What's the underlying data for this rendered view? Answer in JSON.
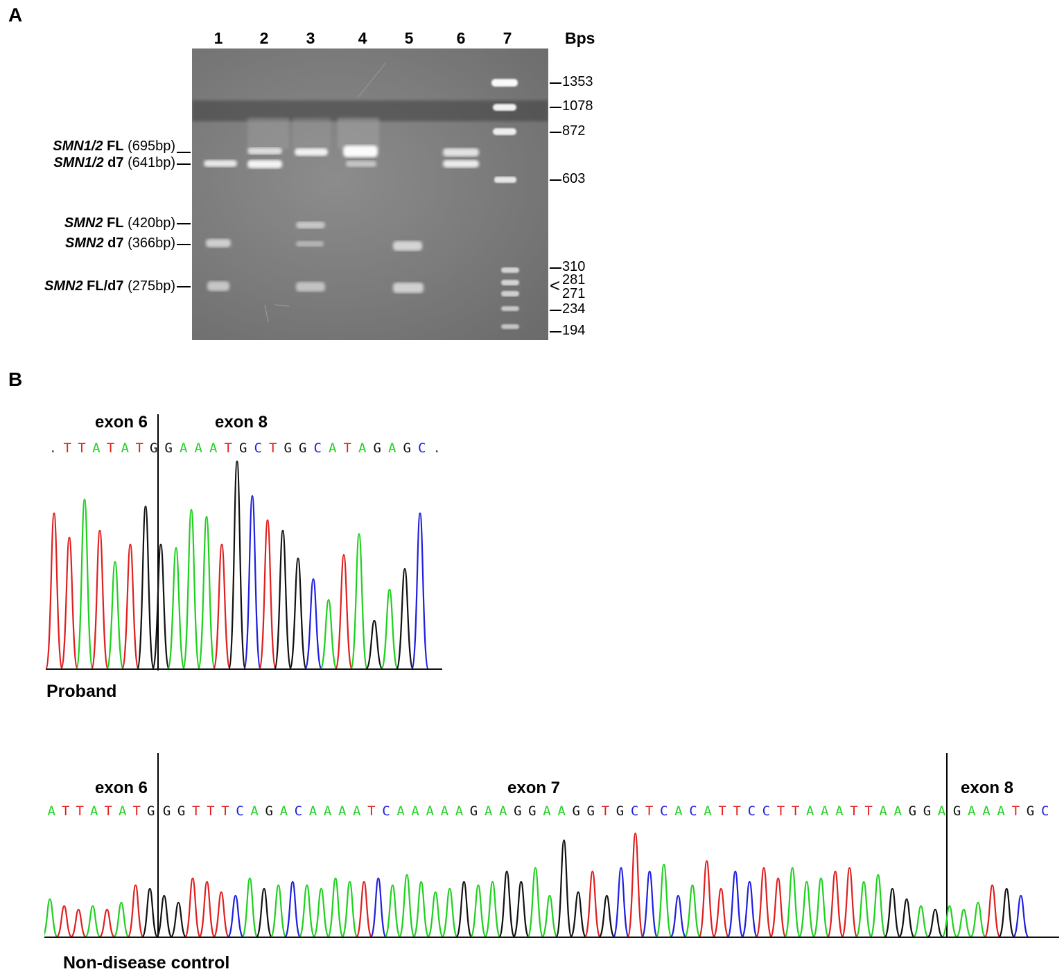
{
  "panel_a": {
    "letter": "A",
    "lane_numbers": [
      "1",
      "2",
      "3",
      "4",
      "5",
      "6",
      "7"
    ],
    "bps_header": "Bps",
    "band_labels": [
      {
        "gene": "SMN1/2",
        "isoform": "FL",
        "size": "(695bp)"
      },
      {
        "gene": "SMN1/2",
        "isoform": "d7",
        "size": "(641bp)"
      },
      {
        "gene": "SMN2",
        "isoform": "FL",
        "size": "(420bp)"
      },
      {
        "gene": "SMN2",
        "isoform": "d7",
        "size": "(366bp)"
      },
      {
        "gene": "SMN2",
        "isoform": "FL/d7",
        "size": "(275bp)"
      }
    ],
    "ladder": [
      "1353",
      "1078",
      "872",
      "603",
      "310",
      "281",
      "271",
      "234",
      "194"
    ],
    "ladder_bracket": "<"
  },
  "panel_b": {
    "letter": "B",
    "proband": {
      "exon_left": "exon 6",
      "exon_right": "exon 8",
      "sequence_left": ".TTATAT",
      "sequence_right": "GGAAATGCTGGCATAGAGC.",
      "label": "Proband"
    },
    "control": {
      "exon_left": "exon 6",
      "exon_middle": "exon 7",
      "exon_right": "exon 8",
      "sequence_left": "ATTATATG",
      "sequence_middle": "GGTTTCAGACAAAATCAAAAAGAAGGAAGGTGCTCACATTCCTTAAATTAAGGA",
      "sequence_right": "GAAATGC",
      "label": "Non-disease control"
    }
  },
  "colors": {
    "A": "#1fd11f",
    "C": "#1f1fe0",
    "G": "#111111",
    "T": "#e01f1f"
  }
}
